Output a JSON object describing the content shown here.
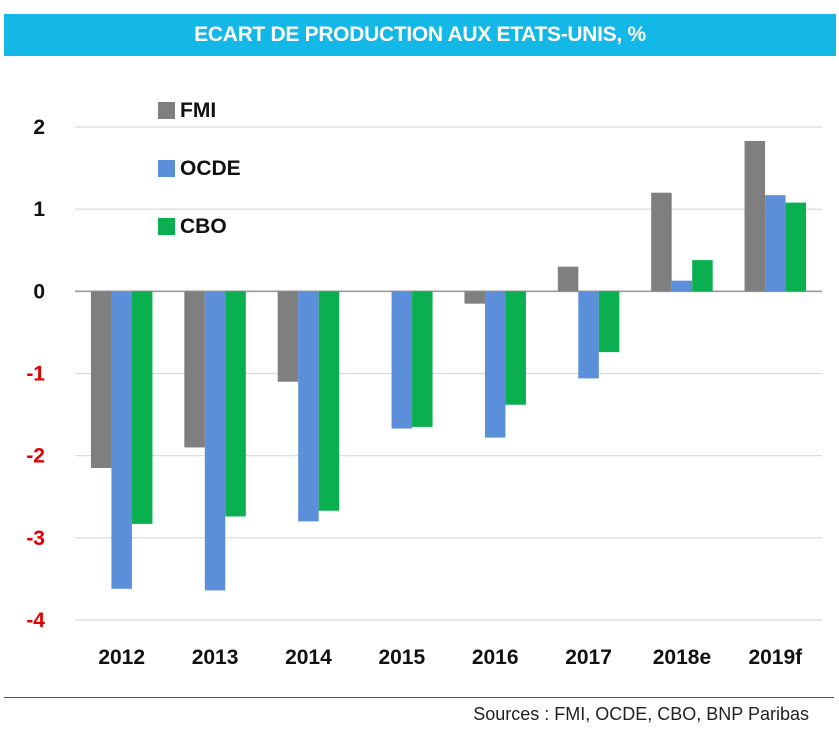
{
  "chart_data": {
    "type": "bar",
    "title": "ECART DE PRODUCTION AUX ETATS-UNIS, %",
    "xlabel": "",
    "ylabel": "",
    "categories": [
      "2012",
      "2013",
      "2014",
      "2015",
      "2016",
      "2017",
      "2018e",
      "2019f"
    ],
    "series": [
      {
        "name": "FMI",
        "color": "#7f7f7f",
        "values": [
          -2.15,
          -1.9,
          -1.1,
          0.0,
          -0.15,
          0.3,
          1.2,
          1.83
        ]
      },
      {
        "name": "OCDE",
        "color": "#5b8fd9",
        "values": [
          -3.62,
          -3.64,
          -2.8,
          -1.67,
          -1.78,
          -1.06,
          0.13,
          1.17
        ]
      },
      {
        "name": "CBO",
        "color": "#0aaf4f",
        "values": [
          -2.83,
          -2.74,
          -2.67,
          -1.65,
          -1.38,
          -0.74,
          0.38,
          1.08
        ]
      }
    ],
    "ylim": [
      -4,
      2
    ],
    "yticks": [
      2,
      1,
      0,
      -1,
      -2,
      -3,
      -4
    ],
    "ytick_labels": [
      "2",
      "1",
      "0",
      "-1",
      "-2",
      "-3",
      "-4"
    ],
    "grid": true,
    "legend_position": "top-left",
    "positive_tick_color": "#111111",
    "negative_tick_color": "#e00000"
  },
  "footer": {
    "source": "Sources : FMI, OCDE, CBO, BNP Paribas"
  }
}
